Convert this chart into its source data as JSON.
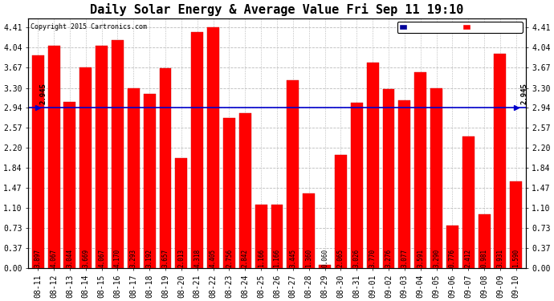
{
  "title": "Daily Solar Energy & Average Value Fri Sep 11 19:10",
  "copyright": "Copyright 2015 Cartronics.com",
  "average_line": 2.945,
  "bar_color": "#FF0000",
  "background_color": "#FFFFFF",
  "plot_bg_color": "#FFFFFF",
  "average_line_color": "#0000CC",
  "grid_color": "#BBBBBB",
  "categories": [
    "08-11",
    "08-12",
    "08-13",
    "08-14",
    "08-15",
    "08-16",
    "08-17",
    "08-18",
    "08-19",
    "08-20",
    "08-21",
    "08-22",
    "08-23",
    "08-24",
    "08-25",
    "08-26",
    "08-27",
    "08-28",
    "08-29",
    "08-30",
    "08-31",
    "09-01",
    "09-02",
    "09-03",
    "09-04",
    "09-05",
    "09-06",
    "09-07",
    "09-08",
    "09-09",
    "09-10"
  ],
  "values": [
    3.897,
    4.067,
    3.044,
    3.669,
    4.067,
    4.17,
    3.293,
    3.192,
    3.657,
    2.013,
    4.318,
    4.405,
    2.756,
    2.842,
    1.166,
    1.166,
    3.445,
    1.36,
    0.06,
    2.065,
    3.026,
    3.77,
    3.276,
    3.077,
    3.591,
    3.29,
    0.776,
    2.412,
    0.981,
    3.931,
    1.59
  ],
  "yticks_left": [
    0.0,
    0.37,
    0.73,
    1.1,
    1.47,
    1.84,
    2.2,
    2.57,
    2.94,
    3.3,
    3.67,
    4.04,
    4.41
  ],
  "yticks_right": [
    0.0,
    0.37,
    0.73,
    1.1,
    1.47,
    1.84,
    2.2,
    2.57,
    2.94,
    3.3,
    3.67,
    4.04,
    4.41
  ],
  "ylim": [
    0.0,
    4.578
  ],
  "legend_average_color": "#000099",
  "legend_daily_color": "#FF0000",
  "title_fontsize": 11,
  "tick_fontsize": 7,
  "value_label_fontsize": 5.5,
  "bar_width": 0.75
}
